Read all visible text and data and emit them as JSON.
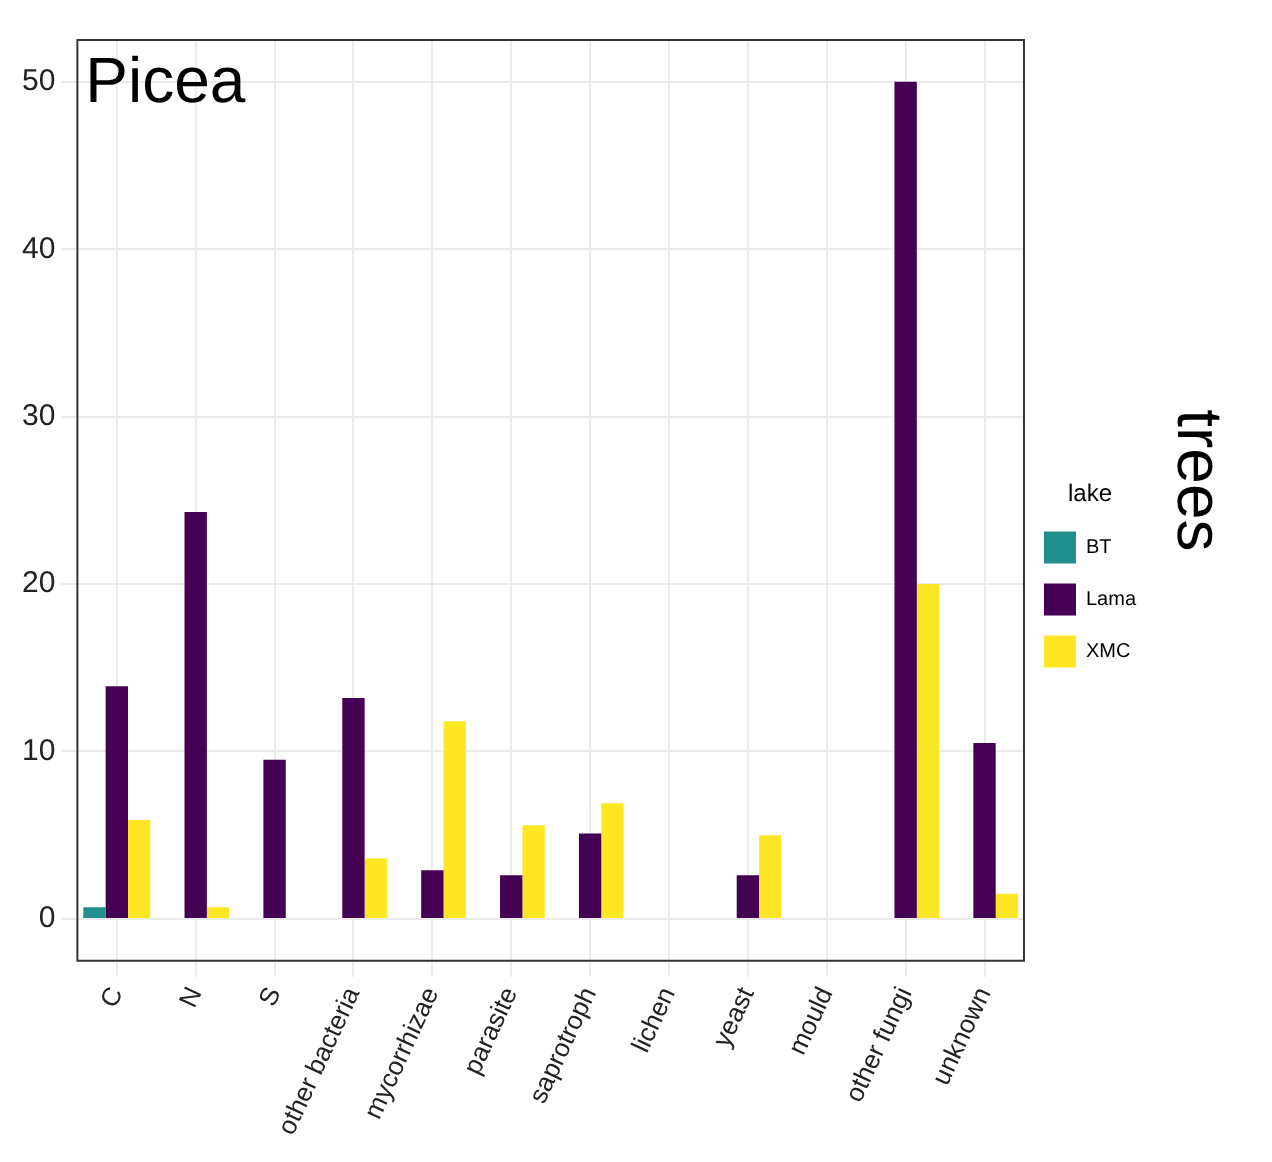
{
  "chart_data": {
    "type": "bar",
    "title": "Picea",
    "y2label": "trees",
    "legend_title": "lake",
    "categories": [
      "C",
      "N",
      "S",
      "other bacteria",
      "mycorrhizae",
      "parasite",
      "saprotroph",
      "lichen",
      "yeast",
      "mould",
      "other fungi",
      "unknown"
    ],
    "series": [
      {
        "name": "BT",
        "color": "#21908c",
        "values": [
          0.7,
          null,
          null,
          null,
          null,
          null,
          null,
          null,
          null,
          null,
          null,
          null
        ]
      },
      {
        "name": "Lama",
        "color": "#440154",
        "values": [
          13.9,
          24.3,
          9.5,
          13.2,
          2.9,
          2.6,
          5.1,
          null,
          2.6,
          null,
          50,
          10.5
        ]
      },
      {
        "name": "XMC",
        "color": "#fde725",
        "values": [
          5.9,
          0.7,
          null,
          3.6,
          11.8,
          5.6,
          6.9,
          null,
          5.0,
          null,
          20,
          1.5
        ]
      }
    ],
    "ylim": [
      -2.5,
      52.5
    ],
    "yticks": [
      0,
      10,
      20,
      30,
      40,
      50
    ],
    "grid": true,
    "legend": "right"
  }
}
